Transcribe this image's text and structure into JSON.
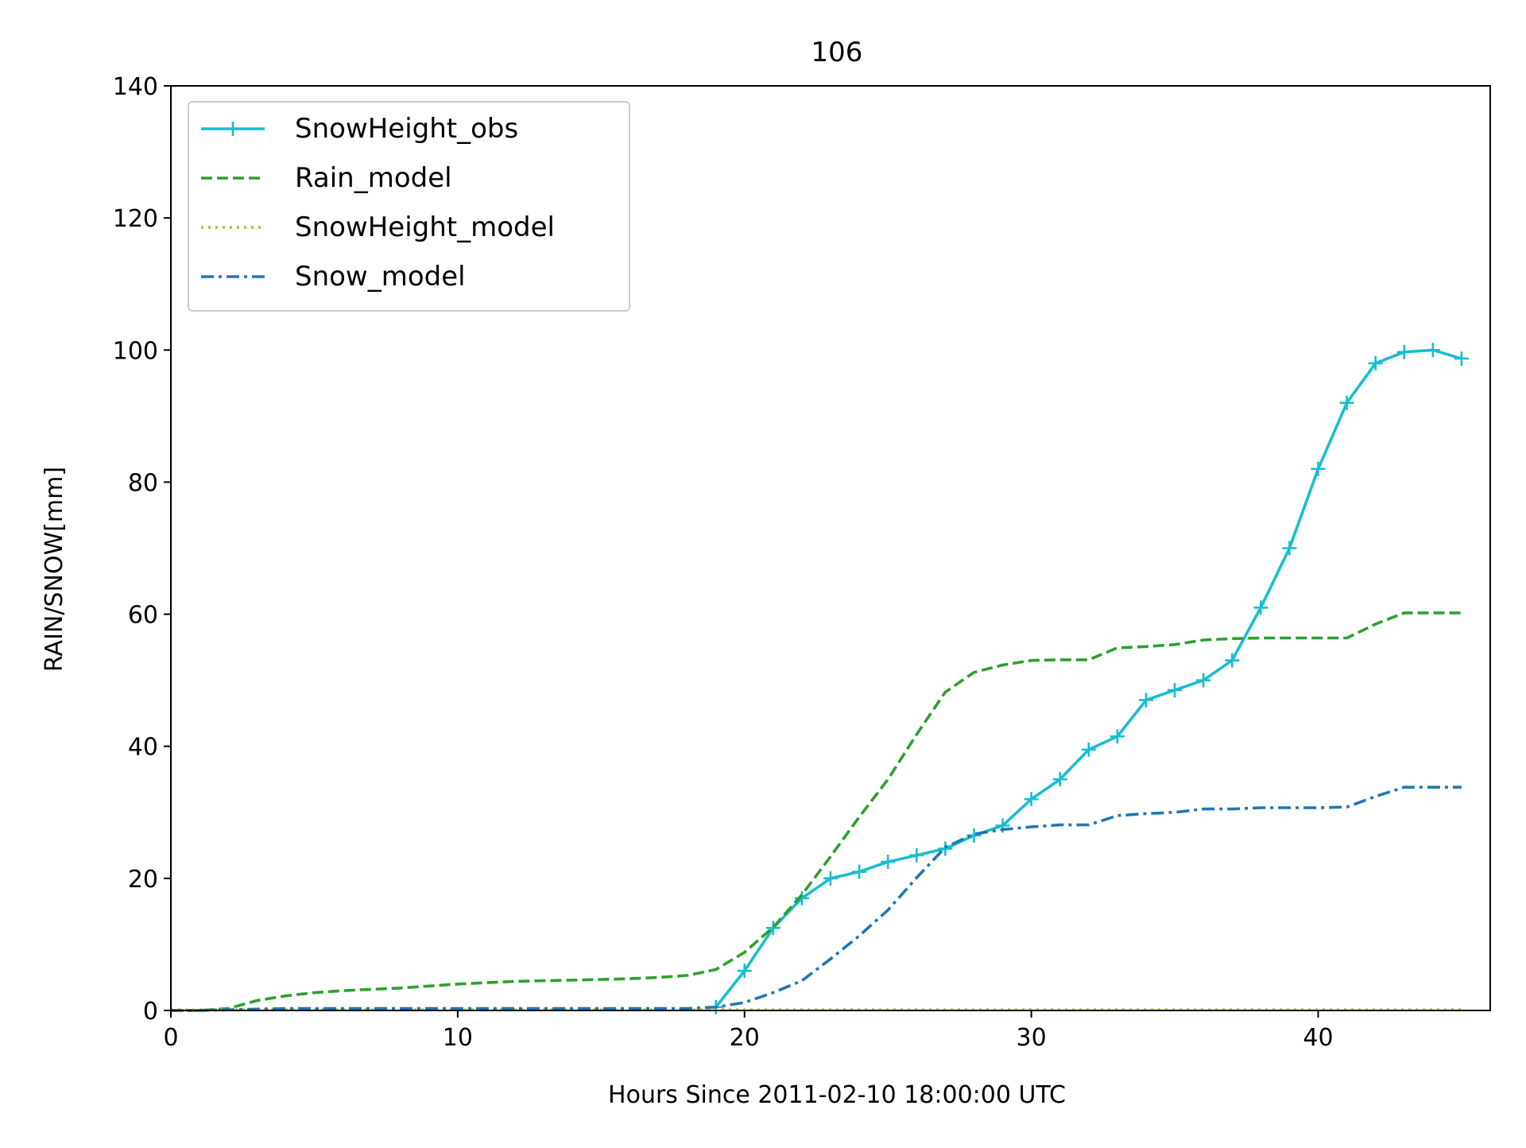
{
  "chart_data": {
    "type": "line",
    "title": "106",
    "xlabel": "Hours Since 2011-02-10 18:00:00 UTC",
    "ylabel": "RAIN/SNOW[mm]",
    "xlim": [
      0,
      46
    ],
    "ylim": [
      0,
      140
    ],
    "xticks": [
      0,
      10,
      20,
      30,
      40
    ],
    "yticks": [
      0,
      20,
      40,
      60,
      80,
      100,
      120,
      140
    ],
    "grid": false,
    "legend_position": "upper-left",
    "series": [
      {
        "name": "SnowHeight_obs",
        "color": "#17becf",
        "style": "solid",
        "marker": "plus",
        "x": [
          19,
          20,
          21,
          22,
          23,
          24,
          25,
          26,
          27,
          28,
          29,
          30,
          31,
          32,
          33,
          34,
          35,
          36,
          37,
          38,
          39,
          40,
          41,
          42,
          43,
          44,
          45
        ],
        "y": [
          0.5,
          6,
          12.5,
          17,
          20,
          21,
          22.5,
          23.5,
          24.5,
          26.5,
          28,
          32,
          35,
          39.5,
          41.5,
          47,
          48.5,
          50,
          53,
          61,
          70,
          82,
          92,
          98,
          99.7,
          100,
          98.7
        ]
      },
      {
        "name": "Rain_model",
        "color": "#2ca02c",
        "style": "dashed",
        "marker": "none",
        "x": [
          0,
          1,
          2,
          3,
          4,
          5,
          6,
          7,
          8,
          9,
          10,
          11,
          12,
          13,
          14,
          15,
          16,
          17,
          18,
          19,
          20,
          21,
          22,
          23,
          24,
          25,
          26,
          27,
          28,
          29,
          30,
          31,
          32,
          33,
          34,
          35,
          36,
          37,
          38,
          39,
          40,
          41,
          42,
          43,
          44,
          45
        ],
        "y": [
          0,
          0,
          0.3,
          1.5,
          2.2,
          2.7,
          3,
          3.2,
          3.4,
          3.7,
          4,
          4.2,
          4.4,
          4.5,
          4.6,
          4.7,
          4.8,
          5,
          5.3,
          6.2,
          8.8,
          12.6,
          17.5,
          23.3,
          29.3,
          35,
          41.8,
          48.2,
          51.2,
          52.3,
          53,
          53.1,
          53.1,
          54.9,
          55.1,
          55.4,
          56.1,
          56.3,
          56.4,
          56.4,
          56.4,
          56.4,
          58.5,
          60.2,
          60.2,
          60.2
        ]
      },
      {
        "name": "SnowHeight_model",
        "color": "#bcbd22",
        "style": "dotted",
        "marker": "none",
        "x": [
          0,
          45
        ],
        "y": [
          0.1,
          0.1
        ]
      },
      {
        "name": "Snow_model",
        "color": "#1f77b4",
        "style": "dashdot",
        "marker": "none",
        "x": [
          0,
          1,
          2,
          3,
          4,
          5,
          6,
          7,
          8,
          9,
          10,
          11,
          12,
          13,
          14,
          15,
          16,
          17,
          18,
          19,
          20,
          21,
          22,
          23,
          24,
          25,
          26,
          27,
          28,
          29,
          30,
          31,
          32,
          33,
          34,
          35,
          36,
          37,
          38,
          39,
          40,
          41,
          42,
          43,
          44,
          45
        ],
        "y": [
          0,
          0,
          0.1,
          0.2,
          0.3,
          0.3,
          0.3,
          0.3,
          0.3,
          0.3,
          0.3,
          0.3,
          0.3,
          0.3,
          0.3,
          0.3,
          0.3,
          0.3,
          0.3,
          0.5,
          1.2,
          2.7,
          4.5,
          7.8,
          11.3,
          15.2,
          20.1,
          24.7,
          26.7,
          27.4,
          27.8,
          28.1,
          28.1,
          29.5,
          29.8,
          30,
          30.5,
          30.5,
          30.7,
          30.7,
          30.7,
          30.8,
          32.4,
          33.8,
          33.8,
          33.8
        ]
      }
    ]
  }
}
